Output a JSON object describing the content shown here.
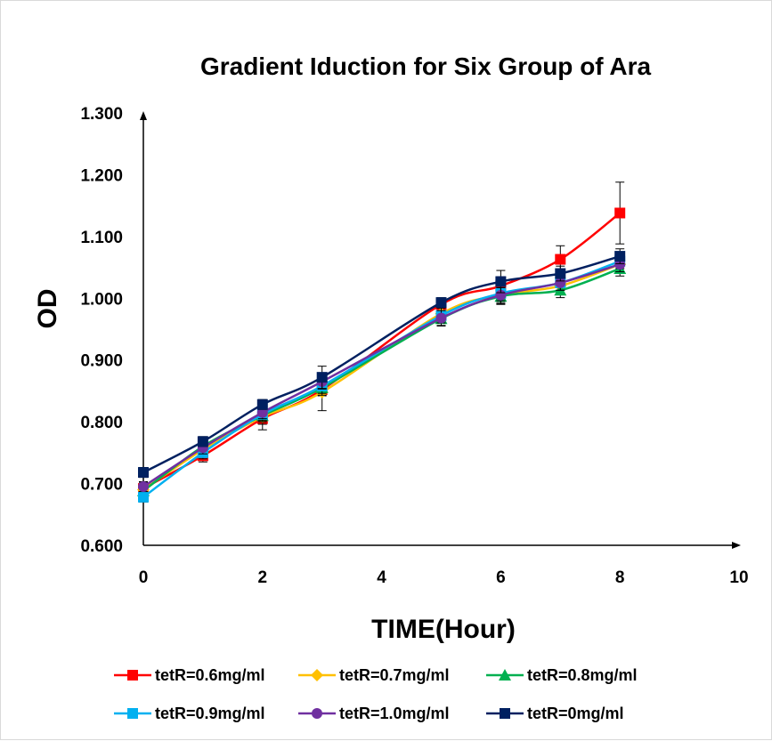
{
  "chart_data": {
    "type": "line",
    "title": "Gradient Iduction for Six Group of Ara",
    "xlabel": "TIME(Hour)",
    "ylabel": "OD",
    "xlim": [
      0,
      10
    ],
    "ylim": [
      0.6,
      1.3
    ],
    "x_ticks": [
      "0",
      "2",
      "4",
      "6",
      "8",
      "10"
    ],
    "y_ticks": [
      "0.600",
      "0.700",
      "0.800",
      "0.900",
      "1.000",
      "1.100",
      "1.200",
      "1.300"
    ],
    "grid": false,
    "legend_position": "bottom",
    "x": [
      0,
      1,
      2,
      3,
      5,
      6,
      7,
      8
    ],
    "series": [
      {
        "name": "tetR=0.6mg/ml",
        "color": "#ff0000",
        "marker": "square",
        "values": [
          0.692,
          0.745,
          0.805,
          0.852,
          0.99,
          1.02,
          1.063,
          1.138
        ],
        "errors": [
          0.01,
          0.01,
          0.018,
          0.01,
          0.008,
          0.015,
          0.022,
          0.05
        ]
      },
      {
        "name": "tetR=0.7mg/ml",
        "color": "#ffc000",
        "marker": "diamond",
        "values": [
          0.69,
          0.755,
          0.808,
          0.848,
          0.975,
          1.005,
          1.02,
          1.055
        ],
        "errors": [
          0.008,
          0.01,
          0.012,
          0.03,
          0.01,
          0.015,
          0.012,
          0.012
        ]
      },
      {
        "name": "tetR=0.8mg/ml",
        "color": "#00b050",
        "marker": "triangle",
        "values": [
          0.688,
          0.76,
          0.81,
          0.855,
          0.967,
          1.003,
          1.013,
          1.048
        ],
        "errors": [
          0.008,
          0.01,
          0.01,
          0.012,
          0.012,
          0.012,
          0.012,
          0.012
        ]
      },
      {
        "name": "tetR=0.9mg/ml",
        "color": "#00b0f0",
        "marker": "square",
        "values": [
          0.678,
          0.75,
          0.812,
          0.858,
          0.972,
          1.008,
          1.025,
          1.06
        ],
        "errors": [
          0.008,
          0.01,
          0.01,
          0.012,
          0.012,
          0.012,
          0.012,
          0.012
        ]
      },
      {
        "name": "tetR=1.0mg/ml",
        "color": "#7030a0",
        "marker": "circle",
        "values": [
          0.695,
          0.758,
          0.815,
          0.865,
          0.968,
          1.005,
          1.025,
          1.055
        ],
        "errors": [
          0.008,
          0.01,
          0.01,
          0.012,
          0.012,
          0.012,
          0.012,
          0.012
        ]
      },
      {
        "name": "tetR=0mg/ml",
        "color": "#002060",
        "marker": "square",
        "values": [
          0.718,
          0.768,
          0.828,
          0.872,
          0.993,
          1.027,
          1.04,
          1.068
        ],
        "errors": [
          0.008,
          0.008,
          0.008,
          0.018,
          0.008,
          0.018,
          0.012,
          0.012
        ]
      }
    ]
  }
}
